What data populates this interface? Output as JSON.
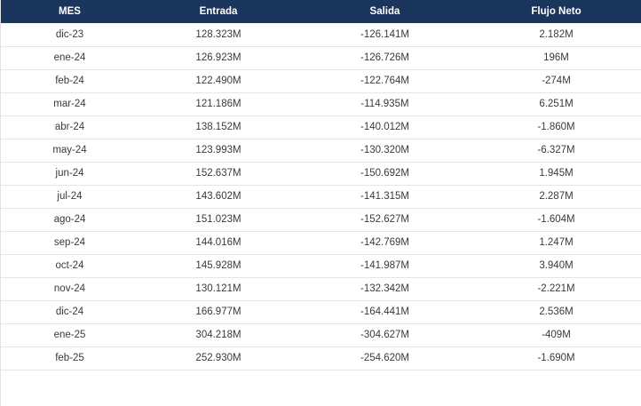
{
  "table": {
    "headers": [
      "MES",
      "Entrada",
      "Salida",
      "Flujo Neto"
    ],
    "rows": [
      [
        "dic-23",
        "128.323M",
        "-126.141M",
        "2.182M"
      ],
      [
        "ene-24",
        "126.923M",
        "-126.726M",
        "196M"
      ],
      [
        "feb-24",
        "122.490M",
        "-122.764M",
        "-274M"
      ],
      [
        "mar-24",
        "121.186M",
        "-114.935M",
        "6.251M"
      ],
      [
        "abr-24",
        "138.152M",
        "-140.012M",
        "-1.860M"
      ],
      [
        "may-24",
        "123.993M",
        "-130.320M",
        "-6.327M"
      ],
      [
        "jun-24",
        "152.637M",
        "-150.692M",
        "1.945M"
      ],
      [
        "jul-24",
        "143.602M",
        "-141.315M",
        "2.287M"
      ],
      [
        "ago-24",
        "151.023M",
        "-152.627M",
        "-1.604M"
      ],
      [
        "sep-24",
        "144.016M",
        "-142.769M",
        "1.247M"
      ],
      [
        "oct-24",
        "145.928M",
        "-141.987M",
        "3.940M"
      ],
      [
        "nov-24",
        "130.121M",
        "-132.342M",
        "-2.221M"
      ],
      [
        "dic-24",
        "166.977M",
        "-164.441M",
        "2.536M"
      ],
      [
        "ene-25",
        "304.218M",
        "-304.627M",
        "-409M"
      ],
      [
        "feb-25",
        "252.930M",
        "-254.620M",
        "-1.690M"
      ]
    ]
  },
  "colors": {
    "header_background": "#1b365d",
    "header_text": "#ffffff",
    "row_divider": "#e6e6e6"
  }
}
